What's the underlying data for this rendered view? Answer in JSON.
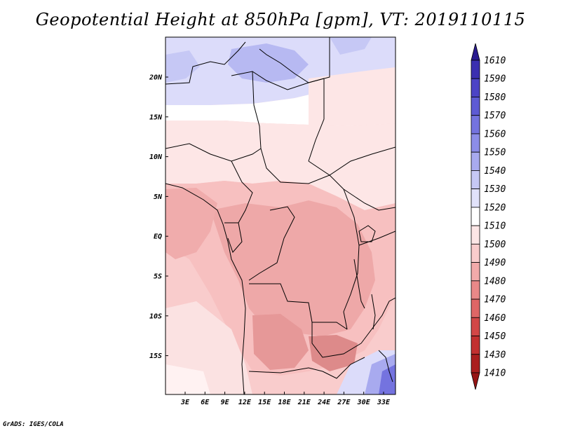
{
  "title": "Geopotential Height at 850hPa [gpm], VT: 2019110115",
  "credit": "GrADS: IGES/COLA",
  "lat_labels": [
    "20N",
    "15N",
    "10N",
    "5N",
    "EQ",
    "5S",
    "10S",
    "15S"
  ],
  "lon_labels": [
    "3E",
    "6E",
    "9E",
    "12E",
    "15E",
    "18E",
    "21E",
    "24E",
    "27E",
    "30E",
    "33E"
  ],
  "colorbar": {
    "labels": [
      "1610",
      "1590",
      "1580",
      "1570",
      "1560",
      "1550",
      "1540",
      "1530",
      "1520",
      "1510",
      "1500",
      "1490",
      "1480",
      "1470",
      "1460",
      "1450",
      "1430",
      "1410"
    ],
    "colors": [
      "#2a1b8f",
      "#3b2fb0",
      "#4c44c6",
      "#5e5bd4",
      "#7473df",
      "#8c8de8",
      "#a8aaef",
      "#c6c8f5",
      "#e1e2fa",
      "#ffffff",
      "#fde6e6",
      "#f9cccc",
      "#f2aaaa",
      "#e98888",
      "#df6666",
      "#d24747",
      "#c23030",
      "#aa1e1e",
      "#961414"
    ]
  },
  "map_colors": {
    "h1520": "#dcdcfa",
    "h1530": "#c6c8f5",
    "h1540": "#a8aaef",
    "h1510": "#ffffff",
    "h1500": "#fde6e6",
    "h1490": "#f9cccc",
    "h1480": "#f2aaaa",
    "h1470": "#e69898",
    "h1460": "#d98080",
    "border": "#000000"
  }
}
